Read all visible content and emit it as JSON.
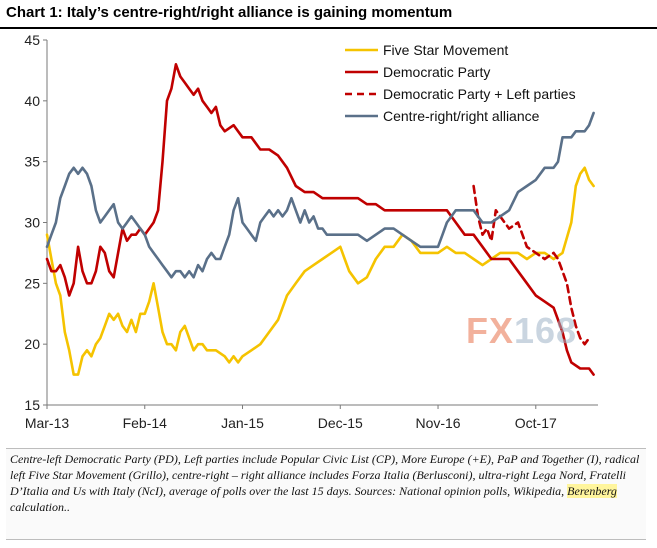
{
  "title": "Chart 1: Italy’s centre-right/right alliance is gaining momentum",
  "footnote": {
    "before": "Centre-left Democratic Party (PD), Left parties include Popular Civic List (CP), More Europe (+E), PaP and Together (I), radical left Five Star Movement (Grillo), centre-right – right alliance includes Forza Italia (Berlusconi), ultra-right Lega Nord, Fratelli D’Italia and Us with Italy (NcI), average of polls over the last 15 days. Sources: National opinion polls, Wikipedia, ",
    "highlight": "Berenberg",
    "after": " calculation.."
  },
  "watermark": {
    "fx": "FX",
    "num": "168"
  },
  "chart_data": {
    "type": "line",
    "title": "Chart 1: Italy’s centre-right/right alliance is gaining momentum",
    "xlabel": "",
    "ylabel": "",
    "ylim": [
      15,
      45
    ],
    "xlim": [
      0,
      62
    ],
    "yticks": [
      15,
      20,
      25,
      30,
      35,
      40,
      45
    ],
    "xticks": [
      {
        "label": "Mar-13",
        "x": 0
      },
      {
        "label": "Feb-14",
        "x": 11
      },
      {
        "label": "Jan-15",
        "x": 22
      },
      {
        "label": "Dec-15",
        "x": 33
      },
      {
        "label": "Nov-16",
        "x": 44
      },
      {
        "label": "Oct-17",
        "x": 55
      }
    ],
    "x_unit": "months since Mar-13",
    "legend_position": "top-right",
    "grid": false,
    "series": [
      {
        "name": "Five Star Movement",
        "color": "#f5c300",
        "dash": "solid",
        "points": [
          [
            0,
            29
          ],
          [
            0.5,
            27
          ],
          [
            1,
            25
          ],
          [
            1.5,
            24
          ],
          [
            2,
            21
          ],
          [
            2.5,
            19.5
          ],
          [
            3,
            17.5
          ],
          [
            3.5,
            17.5
          ],
          [
            4,
            19
          ],
          [
            4.5,
            19.5
          ],
          [
            5,
            19
          ],
          [
            5.5,
            20
          ],
          [
            6,
            20.5
          ],
          [
            6.5,
            21.5
          ],
          [
            7,
            22.5
          ],
          [
            7.5,
            22
          ],
          [
            8,
            22.5
          ],
          [
            8.5,
            21.5
          ],
          [
            9,
            21
          ],
          [
            9.5,
            22
          ],
          [
            10,
            21
          ],
          [
            10.5,
            22.5
          ],
          [
            11,
            22.5
          ],
          [
            11.5,
            23.5
          ],
          [
            12,
            25
          ],
          [
            12.5,
            23
          ],
          [
            13,
            21
          ],
          [
            13.5,
            20
          ],
          [
            14,
            20
          ],
          [
            14.5,
            19.5
          ],
          [
            15,
            21
          ],
          [
            15.5,
            21.5
          ],
          [
            16,
            20.5
          ],
          [
            16.5,
            19.5
          ],
          [
            17,
            20
          ],
          [
            17.5,
            20
          ],
          [
            18,
            19.5
          ],
          [
            19,
            19.5
          ],
          [
            20,
            19
          ],
          [
            20.5,
            18.5
          ],
          [
            21,
            19
          ],
          [
            21.5,
            18.5
          ],
          [
            22,
            19
          ],
          [
            23,
            19.5
          ],
          [
            24,
            20
          ],
          [
            25,
            21
          ],
          [
            26,
            22
          ],
          [
            27,
            24
          ],
          [
            28,
            25
          ],
          [
            29,
            26
          ],
          [
            30,
            26.5
          ],
          [
            31,
            27
          ],
          [
            32,
            27.5
          ],
          [
            33,
            28
          ],
          [
            33.5,
            27
          ],
          [
            34,
            26
          ],
          [
            35,
            25
          ],
          [
            36,
            25.5
          ],
          [
            37,
            27
          ],
          [
            38,
            28
          ],
          [
            39,
            28
          ],
          [
            40,
            29
          ],
          [
            41,
            28.5
          ],
          [
            42,
            27.5
          ],
          [
            43,
            27.5
          ],
          [
            44,
            27.5
          ],
          [
            45,
            28
          ],
          [
            46,
            27.5
          ],
          [
            47,
            27.5
          ],
          [
            48,
            27
          ],
          [
            49,
            26.5
          ],
          [
            50,
            27
          ],
          [
            51,
            27.5
          ],
          [
            52,
            27.5
          ],
          [
            53,
            27.5
          ],
          [
            54,
            27
          ],
          [
            55,
            27.5
          ],
          [
            56,
            27.5
          ],
          [
            57,
            27
          ],
          [
            58,
            27.5
          ],
          [
            59,
            30
          ],
          [
            59.5,
            33
          ],
          [
            60,
            34
          ],
          [
            60.5,
            34.5
          ],
          [
            61,
            33.5
          ],
          [
            61.5,
            33
          ]
        ]
      },
      {
        "name": "Democratic Party",
        "color": "#c00000",
        "dash": "solid",
        "points": [
          [
            0,
            27
          ],
          [
            0.5,
            26
          ],
          [
            1,
            26
          ],
          [
            1.5,
            26.5
          ],
          [
            2,
            25.5
          ],
          [
            2.5,
            24
          ],
          [
            3,
            25
          ],
          [
            3.5,
            28
          ],
          [
            4,
            26
          ],
          [
            4.5,
            25
          ],
          [
            5,
            25
          ],
          [
            5.5,
            26
          ],
          [
            6,
            28
          ],
          [
            6.5,
            27.5
          ],
          [
            7,
            26
          ],
          [
            7.5,
            25.5
          ],
          [
            8,
            27.5
          ],
          [
            8.5,
            29.5
          ],
          [
            9,
            28.5
          ],
          [
            9.5,
            29
          ],
          [
            10,
            29
          ],
          [
            10.5,
            29.5
          ],
          [
            11,
            29
          ],
          [
            11.5,
            29.5
          ],
          [
            12,
            30
          ],
          [
            12.5,
            31
          ],
          [
            13,
            35
          ],
          [
            13.5,
            40
          ],
          [
            14,
            41
          ],
          [
            14.5,
            43
          ],
          [
            15,
            42
          ],
          [
            15.5,
            41.5
          ],
          [
            16,
            41
          ],
          [
            16.5,
            40.5
          ],
          [
            17,
            41
          ],
          [
            17.5,
            40
          ],
          [
            18,
            39.5
          ],
          [
            18.5,
            39
          ],
          [
            19,
            39.5
          ],
          [
            19.5,
            38
          ],
          [
            20,
            37.5
          ],
          [
            21,
            38
          ],
          [
            22,
            37
          ],
          [
            23,
            37
          ],
          [
            24,
            36
          ],
          [
            25,
            36
          ],
          [
            26,
            35.5
          ],
          [
            27,
            34.5
          ],
          [
            28,
            33
          ],
          [
            29,
            32.5
          ],
          [
            30,
            32.5
          ],
          [
            31,
            32
          ],
          [
            32,
            32
          ],
          [
            33,
            32
          ],
          [
            34,
            32
          ],
          [
            35,
            32
          ],
          [
            36,
            31.5
          ],
          [
            37,
            31.5
          ],
          [
            38,
            31
          ],
          [
            39,
            31
          ],
          [
            40,
            31
          ],
          [
            41,
            31
          ],
          [
            42,
            31
          ],
          [
            43,
            31
          ],
          [
            44,
            31
          ],
          [
            45,
            31
          ],
          [
            46,
            30
          ],
          [
            47,
            29
          ],
          [
            48,
            29
          ],
          [
            49,
            28
          ],
          [
            50,
            27
          ],
          [
            51,
            27
          ],
          [
            52,
            27
          ],
          [
            53,
            26
          ],
          [
            54,
            25
          ],
          [
            55,
            24
          ],
          [
            56,
            23.5
          ],
          [
            57,
            23
          ],
          [
            58,
            21
          ],
          [
            58.5,
            19.5
          ],
          [
            59,
            18.5
          ],
          [
            60,
            18
          ],
          [
            61,
            18
          ],
          [
            61.5,
            17.5
          ]
        ]
      },
      {
        "name": "Democratic Party + Left parties",
        "color": "#c00000",
        "dash": "dashed",
        "points": [
          [
            48,
            33
          ],
          [
            48.5,
            30.5
          ],
          [
            49,
            29
          ],
          [
            49.5,
            29.5
          ],
          [
            50,
            28.5
          ],
          [
            50.5,
            31
          ],
          [
            51,
            30.5
          ],
          [
            52,
            29.5
          ],
          [
            53,
            30
          ],
          [
            54,
            28
          ],
          [
            55,
            27.5
          ],
          [
            56,
            27
          ],
          [
            57,
            27.5
          ],
          [
            57.5,
            27
          ],
          [
            58,
            26
          ],
          [
            58.5,
            25
          ],
          [
            59,
            23
          ],
          [
            59.5,
            21.5
          ],
          [
            60,
            20.5
          ],
          [
            60.5,
            20
          ],
          [
            61,
            20.5
          ]
        ]
      },
      {
        "name": "Centre-right/right alliance",
        "color": "#5a7089",
        "dash": "solid",
        "points": [
          [
            0,
            28
          ],
          [
            0.5,
            29
          ],
          [
            1,
            30
          ],
          [
            1.5,
            32
          ],
          [
            2,
            33
          ],
          [
            2.5,
            34
          ],
          [
            3,
            34.5
          ],
          [
            3.5,
            34
          ],
          [
            4,
            34.5
          ],
          [
            4.5,
            34
          ],
          [
            5,
            33
          ],
          [
            5.5,
            31
          ],
          [
            6,
            30
          ],
          [
            6.5,
            30.5
          ],
          [
            7,
            31
          ],
          [
            7.5,
            31.5
          ],
          [
            8,
            30
          ],
          [
            8.5,
            29.5
          ],
          [
            9,
            30
          ],
          [
            9.5,
            30.5
          ],
          [
            10,
            30
          ],
          [
            10.5,
            29.5
          ],
          [
            11,
            29
          ],
          [
            11.5,
            28
          ],
          [
            12,
            27.5
          ],
          [
            12.5,
            27
          ],
          [
            13,
            26.5
          ],
          [
            13.5,
            26
          ],
          [
            14,
            25.5
          ],
          [
            14.5,
            26
          ],
          [
            15,
            26
          ],
          [
            15.5,
            25.5
          ],
          [
            16,
            26
          ],
          [
            16.5,
            25.5
          ],
          [
            17,
            26.5
          ],
          [
            17.5,
            26
          ],
          [
            18,
            27
          ],
          [
            18.5,
            27.5
          ],
          [
            19,
            27
          ],
          [
            19.5,
            27
          ],
          [
            20,
            28
          ],
          [
            20.5,
            29
          ],
          [
            21,
            31
          ],
          [
            21.5,
            32
          ],
          [
            22,
            30
          ],
          [
            22.5,
            29.5
          ],
          [
            23,
            29
          ],
          [
            23.5,
            28.5
          ],
          [
            24,
            30
          ],
          [
            24.5,
            30.5
          ],
          [
            25,
            31
          ],
          [
            25.5,
            30.5
          ],
          [
            26,
            31
          ],
          [
            26.5,
            30.5
          ],
          [
            27,
            31
          ],
          [
            27.5,
            32
          ],
          [
            28,
            31
          ],
          [
            28.5,
            30
          ],
          [
            29,
            31
          ],
          [
            29.5,
            30
          ],
          [
            30,
            30.5
          ],
          [
            30.5,
            29.5
          ],
          [
            31,
            29.5
          ],
          [
            31.5,
            29
          ],
          [
            32,
            29
          ],
          [
            33,
            29
          ],
          [
            34,
            29
          ],
          [
            35,
            29
          ],
          [
            36,
            28.5
          ],
          [
            37,
            29
          ],
          [
            38,
            29.5
          ],
          [
            39,
            29.5
          ],
          [
            40,
            29
          ],
          [
            41,
            28.5
          ],
          [
            42,
            28
          ],
          [
            43,
            28
          ],
          [
            44,
            28
          ],
          [
            44.5,
            29
          ],
          [
            45,
            30
          ],
          [
            45.5,
            30.5
          ],
          [
            46,
            31
          ],
          [
            47,
            31
          ],
          [
            48,
            31
          ],
          [
            49,
            30
          ],
          [
            50,
            30
          ],
          [
            51,
            30.5
          ],
          [
            52,
            31
          ],
          [
            53,
            32.5
          ],
          [
            54,
            33
          ],
          [
            55,
            33.5
          ],
          [
            56,
            34.5
          ],
          [
            57,
            34.5
          ],
          [
            57.5,
            35
          ],
          [
            58,
            37
          ],
          [
            58.5,
            37
          ],
          [
            59,
            37
          ],
          [
            59.5,
            37.5
          ],
          [
            60,
            37.5
          ],
          [
            60.5,
            37.5
          ],
          [
            61,
            38
          ],
          [
            61.5,
            39
          ]
        ]
      }
    ]
  }
}
